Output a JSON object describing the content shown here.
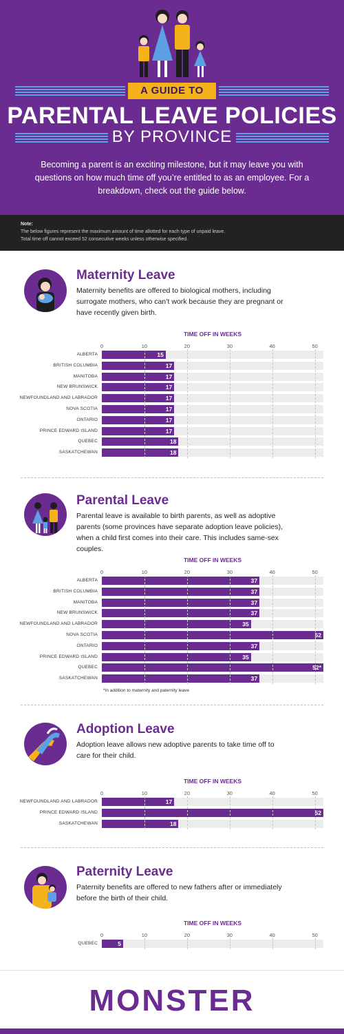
{
  "header": {
    "tag": "A GUIDE TO",
    "title": "PARENTAL LEAVE POLICIES",
    "subtitle": "BY PROVINCE",
    "intro": "Becoming a parent is an exciting milestone, but it may leave you with questions on how much time off you’re entitled to as an employee. For a breakdown, check out the guide below."
  },
  "note": {
    "title": "Note:",
    "line1": "The below figures represent the maximum amount of time allotted for each type of unpaid leave.",
    "line2": "Total time off cannot exceed 52 consecutive weeks unless otherwise specified."
  },
  "sections": [
    {
      "title": "Maternity Leave",
      "description": "Maternity benefits are offered to biological mothers, including surrogate mothers, who can’t work because they are pregnant or have recently given birth.",
      "icon": "mother-baby-icon"
    },
    {
      "title": "Parental Leave",
      "description": "Parental leave is available to birth parents, as well as adoptive parents (some provinces have separate adoption leave policies), when a child first comes into their care. This includes same-sex couples.",
      "icon": "family-icon",
      "footnote": "*In addition to maternity and paternity leave"
    },
    {
      "title": "Adoption Leave",
      "description": "Adoption leave allows new adoptive parents to take time off to care for their child.",
      "icon": "hands-icon"
    },
    {
      "title": "Paternity Leave",
      "description": "Paternity benefits are offered to new fathers after or immediately before the birth of their child.",
      "icon": "father-child-icon"
    }
  ],
  "colors": {
    "purple": "#6a2c91",
    "yellow": "#f5b21b",
    "blue": "#5ea0e6",
    "track": "#ececec"
  },
  "chart_data": [
    {
      "type": "bar",
      "orientation": "horizontal",
      "title": "TIME OFF IN WEEKS",
      "xlim": [
        0,
        52
      ],
      "ticks": [
        0,
        10,
        20,
        30,
        40,
        50
      ],
      "grid": true,
      "categories": [
        "ALBERTA",
        "BRITISH COLUMBIA",
        "MANITOBA",
        "NEW BRUNSWICK",
        "NEWFOUNDLAND AND LABRADOR",
        "NOVA SCOTIA",
        "ONTARIO",
        "PRINCE EDWARD ISLAND",
        "QUEBEC",
        "SASKATCHEWAN"
      ],
      "values": [
        15,
        17,
        17,
        17,
        17,
        17,
        17,
        17,
        18,
        18
      ],
      "labels": [
        "15",
        "17",
        "17",
        "17",
        "17",
        "17",
        "17",
        "17",
        "18",
        "18"
      ]
    },
    {
      "type": "bar",
      "orientation": "horizontal",
      "title": "TIME OFF IN WEEKS",
      "xlim": [
        0,
        52
      ],
      "ticks": [
        0,
        10,
        20,
        30,
        40,
        50
      ],
      "grid": true,
      "categories": [
        "ALBERTA",
        "BRITISH COLUMBIA",
        "MANITOBA",
        "NEW BRUNSWICK",
        "NEWFOUNDLAND AND LABRADOR",
        "NOVA SCOTIA",
        "ONTARIO",
        "PRINCE EDWARD ISLAND",
        "QUEBEC",
        "SASKATCHEWAN"
      ],
      "values": [
        37,
        37,
        37,
        37,
        35,
        52,
        37,
        35,
        52,
        37
      ],
      "labels": [
        "37",
        "37",
        "37",
        "37",
        "35",
        "52",
        "37",
        "35",
        "52*",
        "37"
      ]
    },
    {
      "type": "bar",
      "orientation": "horizontal",
      "title": "TIME OFF IN WEEKS",
      "xlim": [
        0,
        52
      ],
      "ticks": [
        0,
        10,
        20,
        30,
        40,
        50
      ],
      "grid": true,
      "categories": [
        "NEWFOUNDLAND AND LABRADOR",
        "PRINCE EDWARD ISLAND",
        "SASKATCHEWAN"
      ],
      "values": [
        17,
        52,
        18
      ],
      "labels": [
        "17",
        "52",
        "18"
      ]
    },
    {
      "type": "bar",
      "orientation": "horizontal",
      "title": "TIME OFF IN WEEKS",
      "xlim": [
        0,
        52
      ],
      "ticks": [
        0,
        10,
        20,
        30,
        40,
        50
      ],
      "grid": true,
      "categories": [
        "QUEBEC"
      ],
      "values": [
        5
      ],
      "labels": [
        "5"
      ]
    }
  ],
  "footer": {
    "brand": "MONSTER"
  }
}
